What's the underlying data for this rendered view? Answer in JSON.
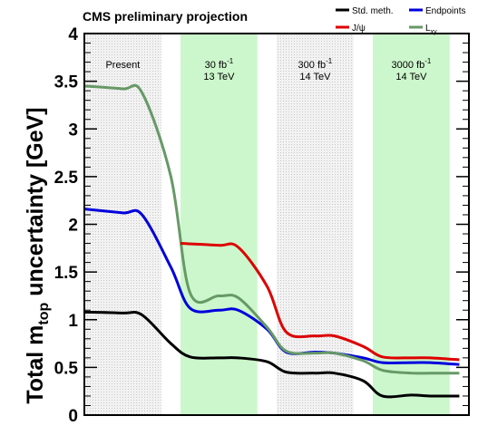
{
  "colors": {
    "band_hatched": "#d6d6d6",
    "band_green": "#ccf7cc",
    "std": "#000000",
    "endpoints": "#0000dd",
    "jpsi": "#dd0000",
    "lxy": "#669966"
  },
  "chart_data": {
    "type": "line",
    "title": "CMS preliminary projection",
    "ylabel_parts": {
      "main": "Total m",
      "sub": "top",
      "rest": " uncertainty [GeV]"
    },
    "ylim": [
      0,
      4
    ],
    "yticks": [
      "0",
      "0.5",
      "1",
      "1.5",
      "2",
      "2.5",
      "3",
      "3.5",
      "4"
    ],
    "ytick_values": [
      0,
      0.5,
      1,
      1.5,
      2,
      2.5,
      3,
      3.5,
      4
    ],
    "xlim": [
      0,
      4
    ],
    "regions": [
      {
        "start": 0.0,
        "end": 0.8,
        "style": "hatched",
        "lines": [
          {
            "pre": "Present",
            "sup": "",
            "post": ""
          }
        ]
      },
      {
        "start": 1.0,
        "end": 1.8,
        "style": "green",
        "lines": [
          {
            "pre": "30 fb",
            "sup": "-1",
            "post": ""
          },
          {
            "pre": "13 TeV",
            "sup": "",
            "post": ""
          }
        ]
      },
      {
        "start": 2.0,
        "end": 2.8,
        "style": "hatched",
        "lines": [
          {
            "pre": "300 fb",
            "sup": "-1",
            "post": ""
          },
          {
            "pre": "14 TeV",
            "sup": "",
            "post": ""
          }
        ]
      },
      {
        "start": 3.0,
        "end": 3.8,
        "style": "green",
        "lines": [
          {
            "pre": "3000 fb",
            "sup": "-1",
            "post": ""
          },
          {
            "pre": "14 TeV",
            "sup": "",
            "post": ""
          }
        ]
      }
    ],
    "legend": [
      {
        "label": "Std. meth.",
        "sub": "",
        "color": "#000000"
      },
      {
        "label": "Endpoints",
        "sub": "",
        "color": "#0000dd"
      },
      {
        "label": "J/ψ",
        "sub": "",
        "color": "#dd0000"
      },
      {
        "label": "L",
        "sub": "xy",
        "color": "#669966"
      }
    ],
    "series": [
      {
        "name": "Std. meth.",
        "color": "#000000",
        "x": [
          0.0,
          0.4,
          0.6,
          0.9,
          1.1,
          1.4,
          1.6,
          1.9,
          2.1,
          2.4,
          2.6,
          2.9,
          3.1,
          3.4,
          3.6,
          3.9
        ],
        "y": [
          1.08,
          1.07,
          1.05,
          0.75,
          0.61,
          0.6,
          0.6,
          0.56,
          0.45,
          0.44,
          0.44,
          0.36,
          0.2,
          0.21,
          0.2,
          0.2
        ]
      },
      {
        "name": "Endpoints",
        "color": "#0000dd",
        "x": [
          0.0,
          0.4,
          0.6,
          0.9,
          1.1,
          1.4,
          1.6,
          1.9,
          2.1,
          2.4,
          2.6,
          2.9,
          3.1,
          3.4,
          3.6,
          3.9
        ],
        "y": [
          2.16,
          2.12,
          2.1,
          1.55,
          1.12,
          1.1,
          1.1,
          0.9,
          0.66,
          0.66,
          0.65,
          0.6,
          0.55,
          0.55,
          0.55,
          0.53
        ]
      },
      {
        "name": "J/ψ",
        "color": "#dd0000",
        "x": [
          1.0,
          1.4,
          1.6,
          1.9,
          2.1,
          2.4,
          2.6,
          2.9,
          3.1,
          3.4,
          3.6,
          3.9
        ],
        "y": [
          1.8,
          1.78,
          1.76,
          1.35,
          0.87,
          0.83,
          0.83,
          0.72,
          0.61,
          0.6,
          0.6,
          0.58
        ]
      },
      {
        "name": "L",
        "color": "#669966",
        "x": [
          0.0,
          0.4,
          0.6,
          0.9,
          1.1,
          1.4,
          1.6,
          1.9,
          2.1,
          2.4,
          2.6,
          2.9,
          3.1,
          3.4,
          3.6,
          3.9
        ],
        "y": [
          3.45,
          3.42,
          3.38,
          2.5,
          1.28,
          1.25,
          1.23,
          0.92,
          0.67,
          0.65,
          0.65,
          0.57,
          0.47,
          0.44,
          0.44,
          0.44
        ]
      }
    ]
  }
}
